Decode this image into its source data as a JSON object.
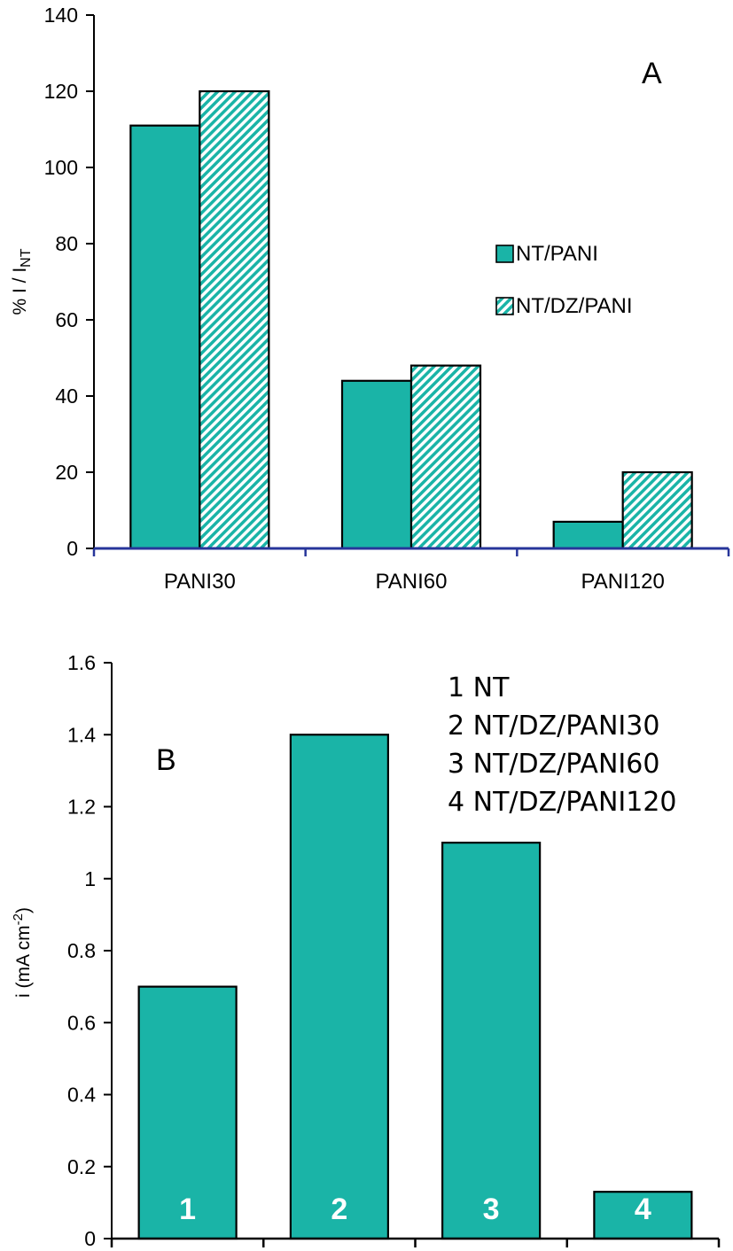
{
  "colors": {
    "bar": "#1ab4a7",
    "axis_a": "#27359a",
    "axis_b": "#000000"
  },
  "chart_data": [
    {
      "type": "bar",
      "panel_label": "A",
      "categories": [
        "PANI30",
        "PANI60",
        "PANI120"
      ],
      "series": [
        {
          "name": "NT/PANI",
          "values": [
            111,
            44,
            7
          ],
          "fill": "solid"
        },
        {
          "name": "NT/DZ/PANI",
          "values": [
            120,
            48,
            20
          ],
          "fill": "hatched"
        }
      ],
      "ylabel_main": "% I / I",
      "ylabel_sub": "NT",
      "ylim": [
        0,
        140
      ],
      "yticks": [
        0,
        20,
        40,
        60,
        80,
        100,
        120,
        140
      ],
      "grid": false,
      "legend_position": "right"
    },
    {
      "type": "bar",
      "panel_label": "B",
      "categories": [
        "1",
        "2",
        "3",
        "4"
      ],
      "values": [
        0.7,
        1.4,
        1.1,
        0.13
      ],
      "ylabel_main": "i (mA cm",
      "ylabel_sup": "-2",
      "ylabel_end": ")",
      "ylim": [
        0,
        1.6
      ],
      "yticks": [
        "0",
        "0.2",
        "0.4",
        "0.6",
        "0.8",
        "1",
        "1.2",
        "1.4",
        "1.6"
      ],
      "grid": false,
      "annotations": [
        "1 NT",
        "2 NT/DZ/PANI30",
        "3 NT/DZ/PANI60",
        "4 NT/DZ/PANI120"
      ]
    }
  ]
}
